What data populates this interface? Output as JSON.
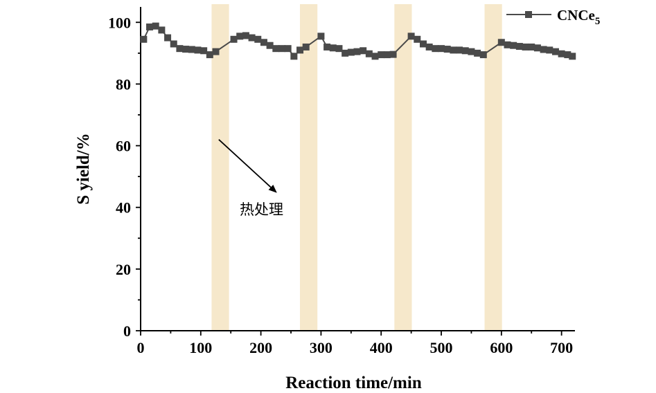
{
  "chart_data": {
    "type": "scatter",
    "xlabel": "Reaction time/min",
    "ylabel": "S yield/%",
    "xlim": [
      0,
      720
    ],
    "ylim": [
      0,
      105
    ],
    "xticks": [
      "0",
      "100",
      "200",
      "300",
      "400",
      "500",
      "600",
      "700"
    ],
    "yticks": [
      "0",
      "20",
      "40",
      "60",
      "80",
      "100"
    ],
    "grid": false,
    "legend_position": "top-right",
    "series": [
      {
        "name": "CNCe",
        "name_subscript": "5",
        "color": "#4a4a4a",
        "marker": "square",
        "line": true,
        "x": [
          5,
          15,
          25,
          35,
          45,
          55,
          65,
          75,
          85,
          95,
          105,
          115,
          125,
          155,
          165,
          175,
          185,
          195,
          205,
          215,
          225,
          235,
          245,
          255,
          265,
          275,
          300,
          310,
          320,
          330,
          340,
          350,
          360,
          370,
          380,
          390,
          400,
          410,
          420,
          450,
          460,
          470,
          480,
          490,
          500,
          510,
          520,
          530,
          540,
          550,
          560,
          570,
          600,
          610,
          620,
          630,
          640,
          650,
          660,
          670,
          680,
          690,
          700,
          710,
          718
        ],
        "y": [
          94.5,
          98.5,
          98.8,
          97.5,
          95.0,
          93.0,
          91.5,
          91.3,
          91.2,
          91.0,
          90.8,
          89.5,
          90.5,
          94.5,
          95.5,
          95.7,
          95.0,
          94.5,
          93.5,
          92.5,
          91.5,
          91.5,
          91.5,
          89.0,
          91.0,
          92.0,
          95.5,
          92.0,
          91.7,
          91.5,
          90.0,
          90.3,
          90.5,
          90.8,
          89.8,
          89.0,
          89.5,
          89.5,
          89.6,
          95.5,
          94.5,
          93.0,
          92.0,
          91.5,
          91.5,
          91.3,
          91.0,
          91.0,
          90.8,
          90.5,
          90.0,
          89.5,
          93.5,
          92.7,
          92.5,
          92.2,
          92.0,
          92.0,
          91.7,
          91.2,
          91.0,
          90.5,
          89.8,
          89.5,
          89.0
        ]
      }
    ],
    "shaded_intervals": [
      [
        118,
        147
      ],
      [
        265,
        294
      ],
      [
        422,
        451
      ],
      [
        572,
        601
      ]
    ],
    "shade_color": "#f6e8cb",
    "annotation": {
      "text": "热处理",
      "arrow_from": [
        130,
        62
      ],
      "arrow_to": [
        225,
        45
      ]
    }
  }
}
